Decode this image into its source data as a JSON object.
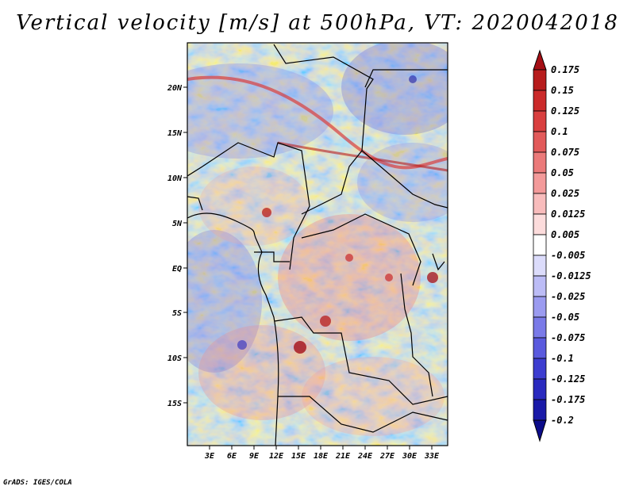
{
  "title": "Vertical velocity [m/s] at 500hPa, VT: 2020042018",
  "credit": "GrADS: IGES/COLA",
  "lat_labels": [
    "20N",
    "15N",
    "10N",
    "5N",
    "EQ",
    "5S",
    "10S",
    "15S"
  ],
  "lon_labels": [
    "3E",
    "6E",
    "9E",
    "12E",
    "15E",
    "18E",
    "21E",
    "24E",
    "27E",
    "30E",
    "33E"
  ],
  "colorbar": {
    "labels": [
      "0.175",
      "0.15",
      "0.125",
      "0.1",
      "0.075",
      "0.05",
      "0.025",
      "0.0125",
      "0.005",
      "-0.005",
      "-0.0125",
      "-0.025",
      "-0.05",
      "-0.075",
      "-0.1",
      "-0.125",
      "-0.175",
      "-0.2"
    ],
    "colors": [
      "#a50f15",
      "#b71c1c",
      "#cb2a2a",
      "#d93f3f",
      "#e25a5a",
      "#eb7a7a",
      "#f39a9a",
      "#f8bcbc",
      "#fcdcdc",
      "#ffffff",
      "#dcdcfb",
      "#bcbcf6",
      "#9b9bf0",
      "#7a7ae8",
      "#5a5ade",
      "#3d3dd0",
      "#2a2abf",
      "#1a1aa8",
      "#0c0c8a"
    ]
  }
}
